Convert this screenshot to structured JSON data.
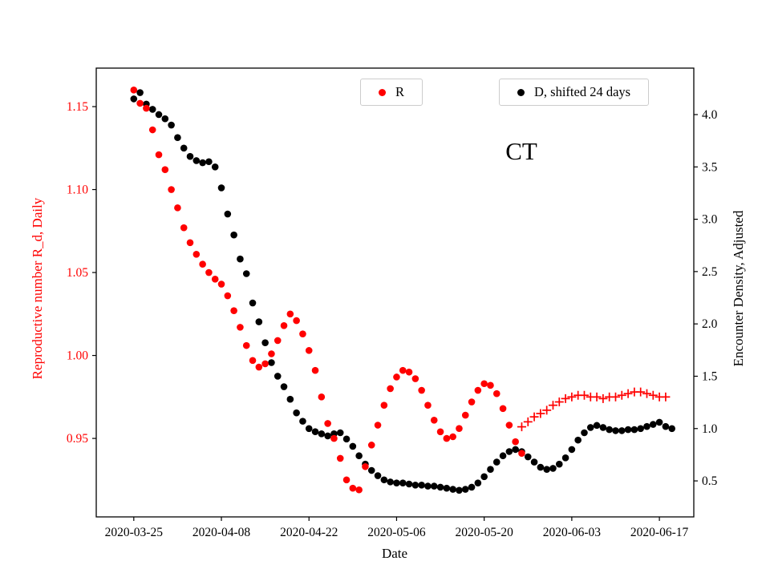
{
  "figure": {
    "annotation": "CT",
    "xlabel": "Date",
    "ylabel_left": "Reproductive number R_d, Daily",
    "ylabel_right": "Encounter Density, Adjusted",
    "left_axis_color": "#ff0000",
    "right_axis_color": "#000000",
    "background": "#ffffff"
  },
  "chart_data": {
    "type": "scatter",
    "title": "CT",
    "xlabel": "Date",
    "x_unit": "days since 2020-03-25",
    "x_tick_days": [
      0,
      14,
      28,
      42,
      56,
      70,
      84
    ],
    "x_tick_labels": [
      "2020-03-25",
      "2020-04-08",
      "2020-04-22",
      "2020-05-06",
      "2020-05-20",
      "2020-06-03",
      "2020-06-17"
    ],
    "xlim_days": [
      -6,
      89.5
    ],
    "grid": false,
    "legend_position": "upper center, two framed boxes",
    "left_axis": {
      "label": "Reproductive number R_d, Daily",
      "color": "#ff0000",
      "ticks": [
        0.95,
        1.0,
        1.05,
        1.1,
        1.15
      ],
      "lim": [
        0.9027,
        1.1732
      ]
    },
    "right_axis": {
      "label": "Encounter Density, Adjusted",
      "color": "#000000",
      "ticks": [
        0.5,
        1.0,
        1.5,
        2.0,
        2.5,
        3.0,
        3.5,
        4.0
      ],
      "lim": [
        0.156,
        4.444
      ]
    },
    "series": [
      {
        "name": "R",
        "axis": "left",
        "marker": "circle",
        "color": "#ff0000",
        "points": [
          [
            0,
            1.16
          ],
          [
            1,
            1.152
          ],
          [
            2,
            1.149
          ],
          [
            3,
            1.136
          ],
          [
            4,
            1.121
          ],
          [
            5,
            1.112
          ],
          [
            6,
            1.1
          ],
          [
            7,
            1.089
          ],
          [
            8,
            1.077
          ],
          [
            9,
            1.068
          ],
          [
            10,
            1.061
          ],
          [
            11,
            1.055
          ],
          [
            12,
            1.05
          ],
          [
            13,
            1.046
          ],
          [
            14,
            1.043
          ],
          [
            15,
            1.036
          ],
          [
            16,
            1.027
          ],
          [
            17,
            1.017
          ],
          [
            18,
            1.006
          ],
          [
            19,
            0.997
          ],
          [
            20,
            0.993
          ],
          [
            21,
            0.995
          ],
          [
            22,
            1.001
          ],
          [
            23,
            1.009
          ],
          [
            24,
            1.018
          ],
          [
            25,
            1.025
          ],
          [
            26,
            1.021
          ],
          [
            27,
            1.013
          ],
          [
            28,
            1.003
          ],
          [
            29,
            0.991
          ],
          [
            30,
            0.975
          ],
          [
            31,
            0.959
          ],
          [
            32,
            0.95
          ],
          [
            33,
            0.938
          ],
          [
            34,
            0.925
          ],
          [
            35,
            0.92
          ],
          [
            36,
            0.919
          ],
          [
            37,
            0.933
          ],
          [
            38,
            0.946
          ],
          [
            39,
            0.958
          ],
          [
            40,
            0.97
          ],
          [
            41,
            0.98
          ],
          [
            42,
            0.987
          ],
          [
            43,
            0.991
          ],
          [
            44,
            0.99
          ],
          [
            45,
            0.986
          ],
          [
            46,
            0.979
          ],
          [
            47,
            0.97
          ],
          [
            48,
            0.961
          ],
          [
            49,
            0.954
          ],
          [
            50,
            0.95
          ],
          [
            51,
            0.951
          ],
          [
            52,
            0.956
          ],
          [
            53,
            0.964
          ],
          [
            54,
            0.972
          ],
          [
            55,
            0.979
          ],
          [
            56,
            0.983
          ],
          [
            57,
            0.982
          ],
          [
            58,
            0.977
          ],
          [
            59,
            0.968
          ],
          [
            60,
            0.958
          ],
          [
            61,
            0.948
          ],
          [
            62,
            0.941
          ]
        ]
      },
      {
        "name": "R",
        "axis": "left",
        "marker": "plus",
        "color": "#ff0000",
        "points": [
          [
            62,
            0.957
          ],
          [
            63,
            0.96
          ],
          [
            64,
            0.963
          ],
          [
            65,
            0.965
          ],
          [
            66,
            0.967
          ],
          [
            67,
            0.97
          ],
          [
            68,
            0.972
          ],
          [
            69,
            0.974
          ],
          [
            70,
            0.975
          ],
          [
            71,
            0.976
          ],
          [
            72,
            0.976
          ],
          [
            73,
            0.975
          ],
          [
            74,
            0.975
          ],
          [
            75,
            0.974
          ],
          [
            76,
            0.975
          ],
          [
            77,
            0.975
          ],
          [
            78,
            0.976
          ],
          [
            79,
            0.977
          ],
          [
            80,
            0.978
          ],
          [
            81,
            0.978
          ],
          [
            82,
            0.977
          ],
          [
            83,
            0.976
          ],
          [
            84,
            0.975
          ],
          [
            85,
            0.975
          ]
        ]
      },
      {
        "name": "D, shifted 24 days",
        "axis": "right",
        "marker": "circle",
        "color": "#000000",
        "points": [
          [
            0,
            4.15
          ],
          [
            1,
            4.21
          ],
          [
            2,
            4.1
          ],
          [
            3,
            4.05
          ],
          [
            4,
            4.0
          ],
          [
            5,
            3.96
          ],
          [
            6,
            3.9
          ],
          [
            7,
            3.78
          ],
          [
            8,
            3.68
          ],
          [
            9,
            3.6
          ],
          [
            10,
            3.56
          ],
          [
            11,
            3.54
          ],
          [
            12,
            3.55
          ],
          [
            13,
            3.5
          ],
          [
            14,
            3.3
          ],
          [
            15,
            3.05
          ],
          [
            16,
            2.85
          ],
          [
            17,
            2.62
          ],
          [
            18,
            2.48
          ],
          [
            19,
            2.2
          ],
          [
            20,
            2.02
          ],
          [
            21,
            1.82
          ],
          [
            22,
            1.63
          ],
          [
            23,
            1.5
          ],
          [
            24,
            1.4
          ],
          [
            25,
            1.28
          ],
          [
            26,
            1.15
          ],
          [
            27,
            1.07
          ],
          [
            28,
            1.0
          ],
          [
            29,
            0.97
          ],
          [
            30,
            0.95
          ],
          [
            31,
            0.93
          ],
          [
            32,
            0.95
          ],
          [
            33,
            0.96
          ],
          [
            34,
            0.9
          ],
          [
            35,
            0.83
          ],
          [
            36,
            0.74
          ],
          [
            37,
            0.66
          ],
          [
            38,
            0.6
          ],
          [
            39,
            0.55
          ],
          [
            40,
            0.51
          ],
          [
            41,
            0.49
          ],
          [
            42,
            0.48
          ],
          [
            43,
            0.48
          ],
          [
            44,
            0.47
          ],
          [
            45,
            0.46
          ],
          [
            46,
            0.46
          ],
          [
            47,
            0.45
          ],
          [
            48,
            0.45
          ],
          [
            49,
            0.44
          ],
          [
            50,
            0.43
          ],
          [
            51,
            0.42
          ],
          [
            52,
            0.41
          ],
          [
            53,
            0.42
          ],
          [
            54,
            0.44
          ],
          [
            55,
            0.48
          ],
          [
            56,
            0.54
          ],
          [
            57,
            0.61
          ],
          [
            58,
            0.68
          ],
          [
            59,
            0.74
          ],
          [
            60,
            0.78
          ],
          [
            61,
            0.8
          ],
          [
            62,
            0.78
          ],
          [
            63,
            0.73
          ],
          [
            64,
            0.68
          ],
          [
            65,
            0.63
          ],
          [
            66,
            0.61
          ],
          [
            67,
            0.62
          ],
          [
            68,
            0.66
          ],
          [
            69,
            0.72
          ],
          [
            70,
            0.8
          ],
          [
            71,
            0.89
          ],
          [
            72,
            0.96
          ],
          [
            73,
            1.01
          ],
          [
            74,
            1.03
          ],
          [
            75,
            1.01
          ],
          [
            76,
            0.99
          ],
          [
            77,
            0.98
          ],
          [
            78,
            0.98
          ],
          [
            79,
            0.99
          ],
          [
            80,
            0.99
          ],
          [
            81,
            1.0
          ],
          [
            82,
            1.02
          ],
          [
            83,
            1.04
          ],
          [
            84,
            1.06
          ],
          [
            85,
            1.02
          ],
          [
            86,
            1.0
          ]
        ]
      }
    ]
  }
}
